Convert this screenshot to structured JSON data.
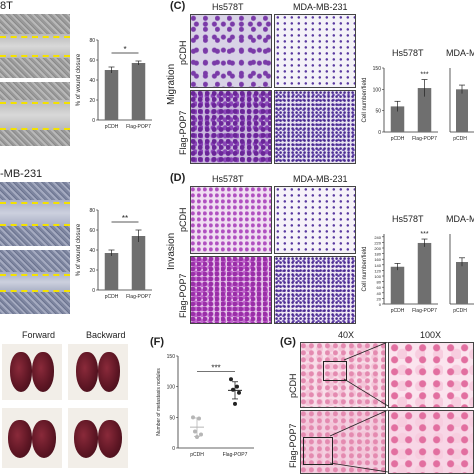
{
  "panel_letters": {
    "C": "(C)",
    "D": "(D)",
    "F": "(F)",
    "G": "(G)"
  },
  "wound": {
    "title_top": "8T",
    "title_bottom": "-MB-231",
    "chart_top": {
      "ylabel": "% of wound closure",
      "sig": "*"
    },
    "chart_bottom": {
      "ylabel": "% of wound closure",
      "sig": "**"
    }
  },
  "migration": {
    "col1": "Hs578T",
    "col2": "MDA-MB-231",
    "row_label": "Migration",
    "row1": "pCDH",
    "row2": "Flag-POP7",
    "chart_title_1": "Hs578T",
    "chart_title_2": "MDA-MB",
    "ylabel": "Cell number/field",
    "sig": "***"
  },
  "invasion": {
    "col1": "Hs578T",
    "col2": "MDA-MB-231",
    "row_label": "Invasion",
    "row1": "pCDH",
    "row2": "Flag-POP7",
    "chart_title_1": "Hs578T",
    "chart_title_2": "MDA-MB",
    "ylabel": "Cell number/field",
    "sig": "***"
  },
  "lungs": {
    "forward": "Forward",
    "backward": "Backward"
  },
  "nodules": {
    "ylabel": "Number of metastasis nodules",
    "sig": "***"
  },
  "histology": {
    "mag1": "40X",
    "mag2": "100X",
    "row1": "pCDH",
    "row2": "Flag-POP7"
  },
  "chart_data": [
    {
      "type": "bar",
      "panel": "wound-top",
      "categories": [
        "pCDH",
        "Flag-POP7"
      ],
      "values": [
        50,
        57
      ],
      "errors": [
        3,
        2
      ],
      "ylabel": "% of wound closure",
      "ylim": [
        0,
        80
      ],
      "yticks": [
        "0",
        "20",
        "40",
        "60",
        "80"
      ],
      "color": "#6f6f6f"
    },
    {
      "type": "bar",
      "panel": "wound-bottom",
      "categories": [
        "pCDH",
        "Flag-POP7"
      ],
      "values": [
        37,
        54
      ],
      "errors": [
        3,
        6
      ],
      "ylabel": "% of wound closure",
      "ylim": [
        0,
        80
      ],
      "yticks": [
        "0",
        "20",
        "40",
        "60",
        "80"
      ],
      "color": "#6f6f6f"
    },
    {
      "type": "bar",
      "panel": "migration-hs578t",
      "categories": [
        "pCDH",
        "Flag-POP7"
      ],
      "values": [
        60,
        103
      ],
      "errors": [
        12,
        20
      ],
      "ylabel": "Cell number/field",
      "ylim": [
        0,
        150
      ],
      "yticks": [
        "0",
        "50",
        "100",
        "150"
      ],
      "color": "#6f6f6f"
    },
    {
      "type": "bar",
      "panel": "migration-mdamb",
      "categories": [
        "pCDH"
      ],
      "values": [
        400
      ],
      "errors": [
        40
      ],
      "ylim": [
        0,
        600
      ],
      "color": "#6f6f6f"
    },
    {
      "type": "bar",
      "panel": "invasion-hs578t",
      "categories": [
        "pCDH",
        "Flag-POP7"
      ],
      "values": [
        133,
        218
      ],
      "errors": [
        12,
        14
      ],
      "ylabel": "Cell number/field",
      "ylim": [
        0,
        250
      ],
      "yticks": [
        "0",
        "20",
        "40",
        "60",
        "80",
        "100",
        "120",
        "140",
        "160",
        "180",
        "200",
        "220",
        "240"
      ],
      "color": "#6f6f6f"
    },
    {
      "type": "bar",
      "panel": "invasion-mdamb",
      "categories": [
        "pCDH"
      ],
      "values": [
        150
      ],
      "errors": [
        15
      ],
      "ylim": [
        0,
        250
      ],
      "color": "#6f6f6f"
    },
    {
      "type": "scatter",
      "panel": "nodules",
      "categories": [
        "pCDH",
        "Flag-POP7"
      ],
      "series": [
        {
          "name": "pCDH",
          "values": [
            50,
            48,
            27,
            22,
            18
          ],
          "mean": 34,
          "sd": 15,
          "color": "#b6b6b6"
        },
        {
          "name": "Flag-POP7",
          "values": [
            112,
            100,
            95,
            90,
            72
          ],
          "mean": 94,
          "sd": 14,
          "color": "#222222"
        }
      ],
      "ylabel": "Number of metastasis nodules",
      "ylim": [
        0,
        150
      ],
      "yticks": [
        "0",
        "50",
        "100",
        "150"
      ]
    }
  ]
}
